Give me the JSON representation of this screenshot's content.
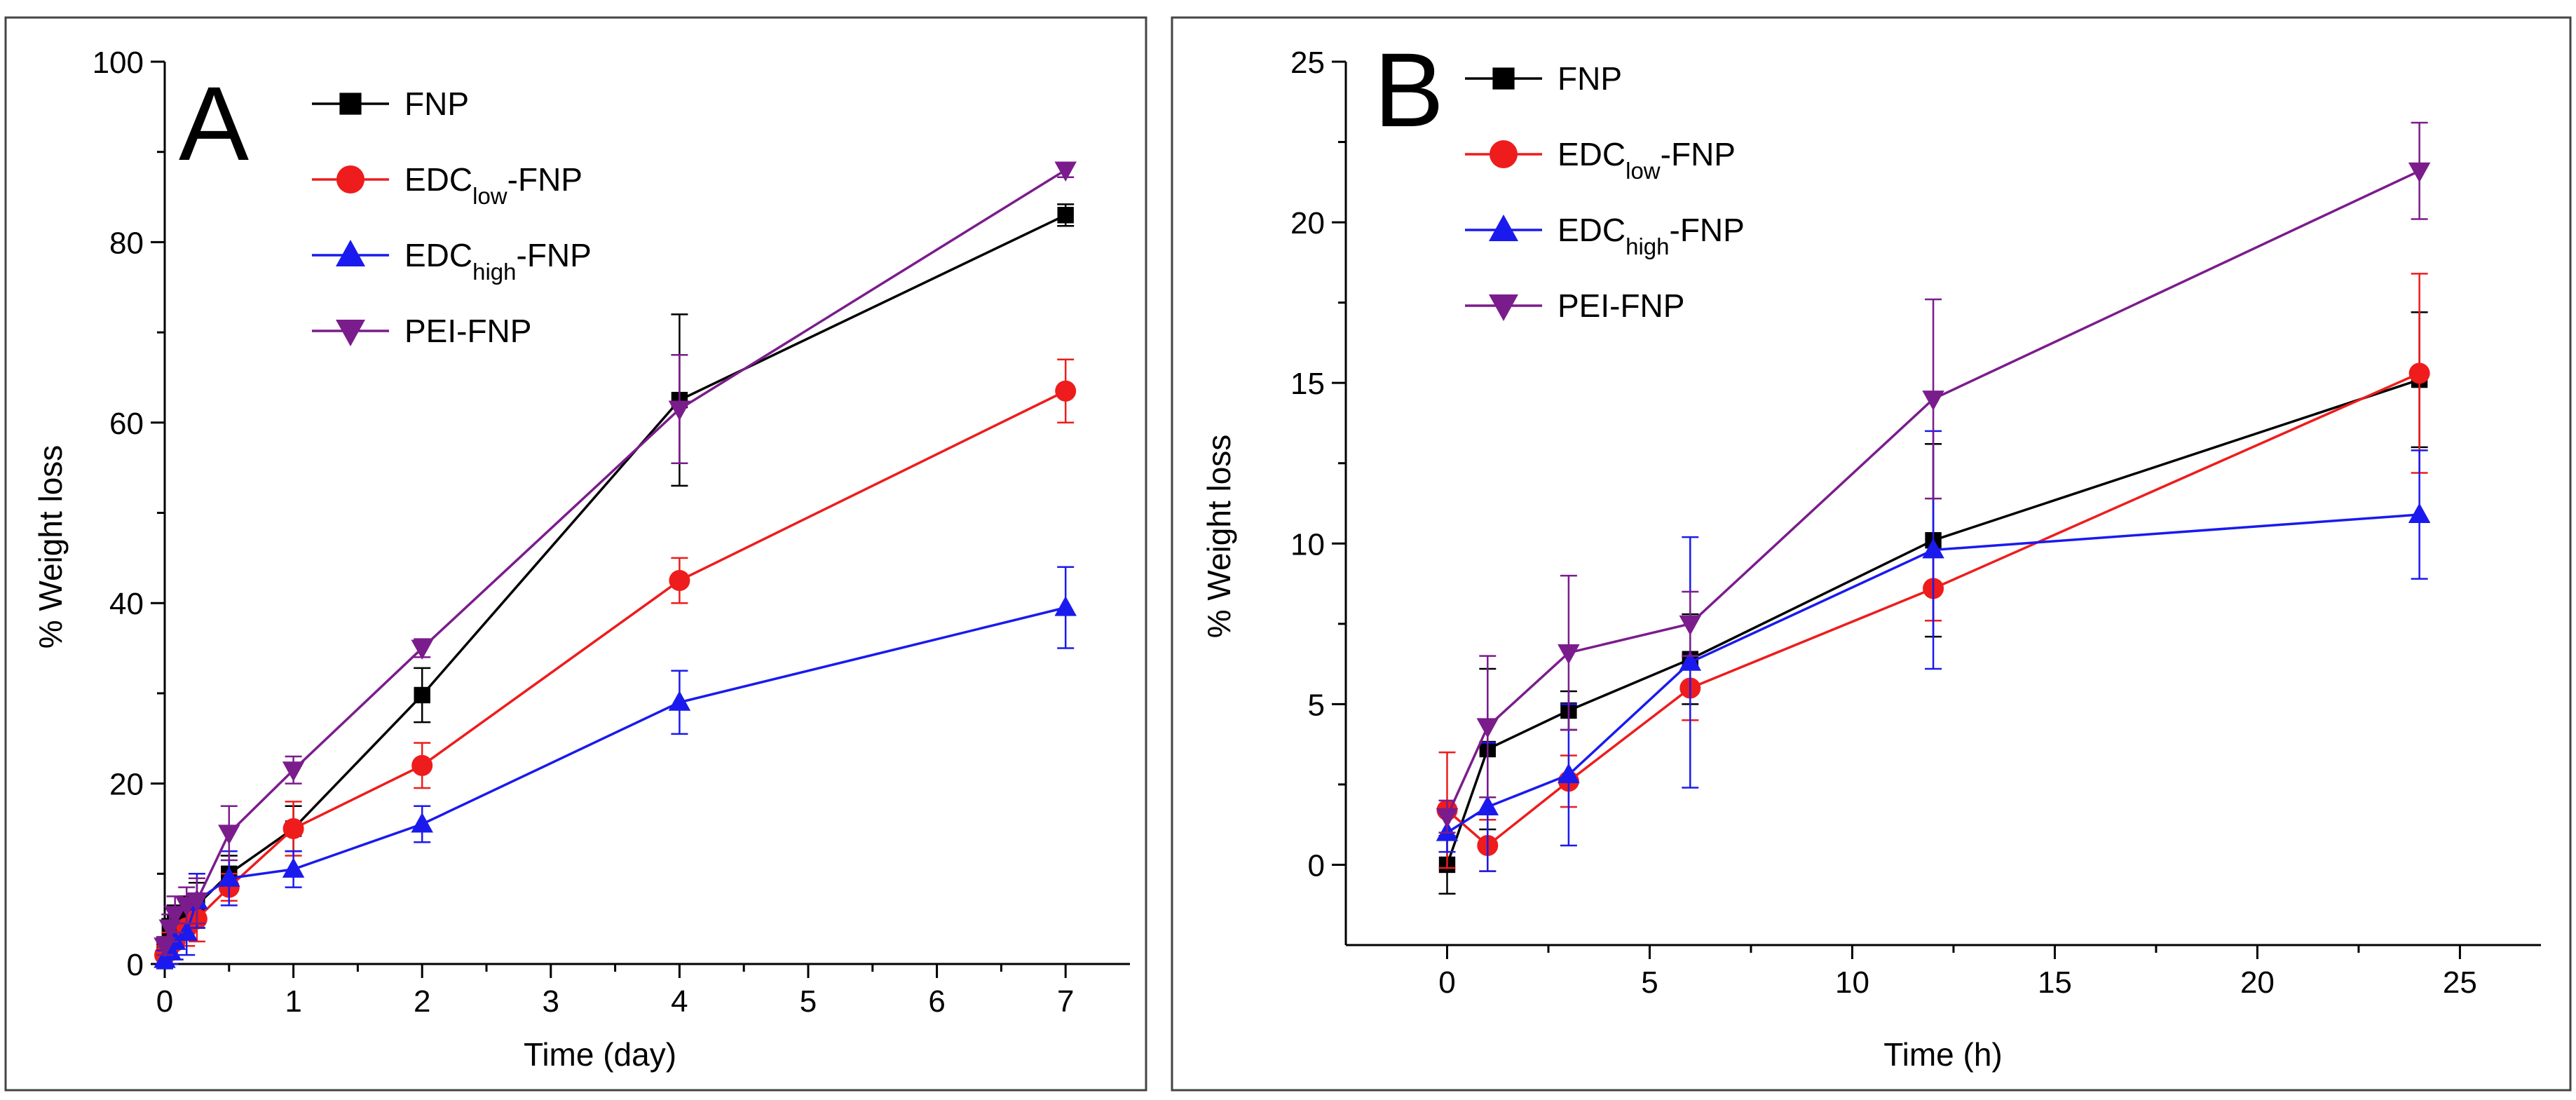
{
  "figure": {
    "panels": [
      "A",
      "B"
    ]
  },
  "colors": {
    "FNP": "#000000",
    "EDClow-FNP": "#ee1c1c",
    "EDChigh-FNP": "#1a1aee",
    "PEI-FNP": "#7b1c8c"
  },
  "chart_data": [
    {
      "type": "line",
      "panel_label": "A",
      "title": "",
      "xlabel": "Time (day)",
      "ylabel": "% Weight loss",
      "xlim": [
        0,
        7.5
      ],
      "ylim": [
        0,
        100
      ],
      "xticks": [
        0,
        1,
        2,
        3,
        4,
        5,
        6,
        7
      ],
      "yticks": [
        0,
        20,
        40,
        60,
        80,
        100
      ],
      "legend_position": "top-left",
      "series": [
        {
          "name": "FNP",
          "label_main": "FNP",
          "label_sub": "",
          "label_tail": "",
          "marker": "square",
          "x": [
            0,
            0.04,
            0.08,
            0.17,
            0.25,
            0.5,
            1,
            2,
            4,
            7
          ],
          "y": [
            1.5,
            3.5,
            4.5,
            5.5,
            6.5,
            10,
            15,
            29.8,
            62.5,
            83
          ],
          "err": [
            1,
            1.5,
            2,
            2,
            2.5,
            2,
            2.5,
            3,
            9.5,
            1.2
          ]
        },
        {
          "name": "EDClow-FNP",
          "label_main": "EDC",
          "label_sub": "low",
          "label_tail": "-FNP",
          "marker": "circle",
          "x": [
            0,
            0.04,
            0.08,
            0.17,
            0.25,
            0.5,
            1,
            2,
            4,
            7
          ],
          "y": [
            1,
            2,
            2.5,
            4,
            5,
            8.5,
            15,
            22,
            42.5,
            63.5
          ],
          "err": [
            1,
            1.5,
            2,
            2,
            2.5,
            1.5,
            3,
            2.5,
            2.5,
            3.5
          ]
        },
        {
          "name": "EDChigh-FNP",
          "label_main": "EDC",
          "label_sub": "high",
          "label_tail": "-FNP",
          "marker": "triangle-up",
          "x": [
            0,
            0.04,
            0.08,
            0.17,
            0.25,
            0.5,
            1,
            2,
            4,
            7
          ],
          "y": [
            0.5,
            1.5,
            2.5,
            3.5,
            7,
            9.5,
            10.5,
            15.5,
            29,
            39.5
          ],
          "err": [
            1,
            1.5,
            2,
            2.5,
            3,
            3,
            2,
            2,
            3.5,
            4.5
          ]
        },
        {
          "name": "PEI-FNP",
          "label_main": "PEI-FNP",
          "label_sub": "",
          "label_tail": "",
          "marker": "triangle-down",
          "x": [
            0,
            0.04,
            0.08,
            0.17,
            0.25,
            0.5,
            1,
            2,
            4,
            7
          ],
          "y": [
            2,
            4,
            5.5,
            6.5,
            7,
            14.5,
            21.5,
            35,
            61.5,
            88
          ],
          "err": [
            1,
            1.5,
            2,
            2,
            2.5,
            3,
            1.5,
            1,
            6,
            0.8
          ]
        }
      ]
    },
    {
      "type": "line",
      "panel_label": "B",
      "title": "",
      "xlabel": "Time (h)",
      "ylabel": "% Weight loss",
      "xlim": [
        -2.5,
        27
      ],
      "ylim": [
        -2.5,
        25
      ],
      "xticks": [
        0,
        5,
        10,
        15,
        20,
        25
      ],
      "yticks": [
        0,
        5,
        10,
        15,
        20,
        25
      ],
      "legend_position": "top-left",
      "series": [
        {
          "name": "FNP",
          "label_main": "FNP",
          "label_sub": "",
          "label_tail": "",
          "marker": "square",
          "x": [
            0,
            1,
            3,
            6,
            12,
            24
          ],
          "y": [
            0,
            3.6,
            4.8,
            6.4,
            10.1,
            15.1
          ],
          "err": [
            0.9,
            2.5,
            0.6,
            1.4,
            3.0,
            2.1
          ]
        },
        {
          "name": "EDClow-FNP",
          "label_main": "EDC",
          "label_sub": "low",
          "label_tail": "-FNP",
          "marker": "circle",
          "x": [
            0,
            1,
            3,
            6,
            12,
            24
          ],
          "y": [
            1.7,
            0.6,
            2.6,
            5.5,
            8.6,
            15.3
          ],
          "err": [
            1.8,
            0.8,
            0.8,
            1.0,
            1.0,
            3.1
          ]
        },
        {
          "name": "EDChigh-FNP",
          "label_main": "EDC",
          "label_sub": "high",
          "label_tail": "-FNP",
          "marker": "triangle-up",
          "x": [
            0,
            1,
            3,
            6,
            12,
            24
          ],
          "y": [
            1.0,
            1.8,
            2.8,
            6.3,
            9.8,
            10.9
          ],
          "err": [
            0.6,
            2.0,
            2.2,
            3.9,
            3.7,
            2.0
          ]
        },
        {
          "name": "PEI-FNP",
          "label_main": "PEI-FNP",
          "label_sub": "",
          "label_tail": "",
          "marker": "triangle-down",
          "x": [
            0,
            1,
            3,
            6,
            12,
            24
          ],
          "y": [
            1.5,
            4.3,
            6.6,
            7.5,
            14.5,
            21.6
          ],
          "err": [
            0.5,
            2.2,
            2.4,
            1.0,
            3.1,
            1.5
          ]
        }
      ]
    }
  ]
}
